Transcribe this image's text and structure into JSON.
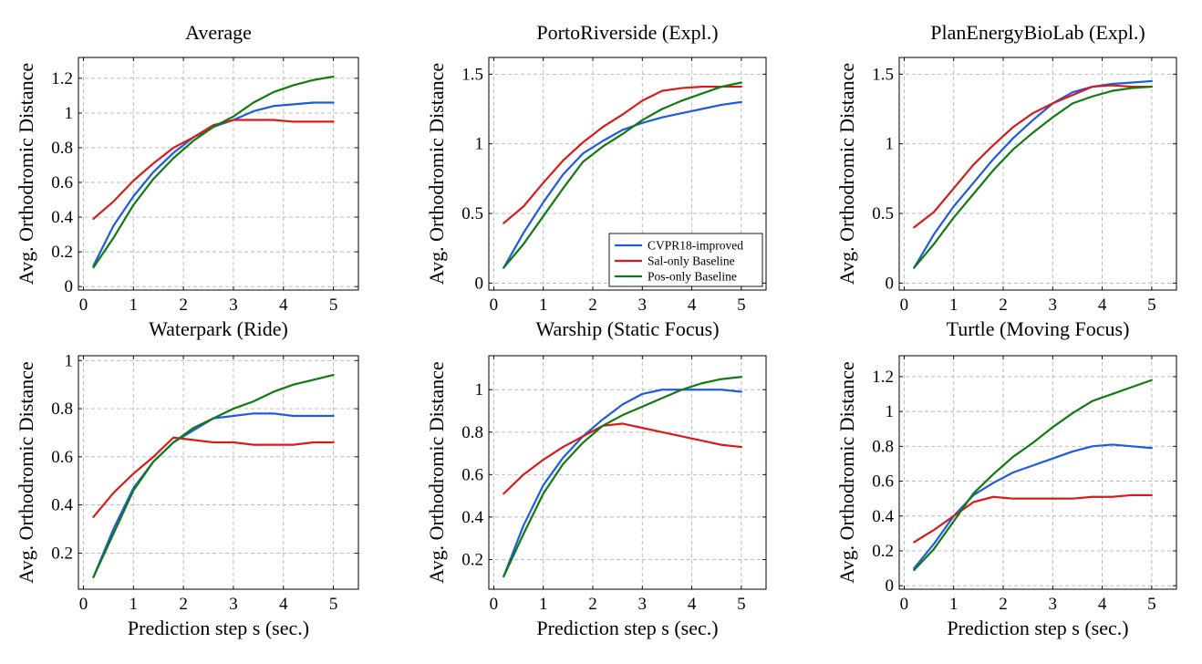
{
  "colors": {
    "CVPR18-improved": "#1f5be0",
    "Sal-only Baseline": "#d81b1b",
    "Pos-only Baseline": "#127a12"
  },
  "chart_data": [
    {
      "type": "line",
      "title": "Average",
      "xlabel": "Waterpark (Ride)",
      "ylabel": "Avg. Orthodromic Distance",
      "xlim": [
        -0.1,
        5.5
      ],
      "ylim": [
        -0.02,
        1.32
      ],
      "xticks": [
        0,
        1,
        2,
        3,
        4,
        5
      ],
      "xtick_labels": [
        "0",
        "1",
        "2",
        "3",
        "4",
        "5"
      ],
      "yticks": [
        0,
        0.2,
        0.4,
        0.6,
        0.8,
        1,
        1.2
      ],
      "ytick_labels": [
        "0",
        "0.2",
        "0.4",
        "0.6",
        "0.8",
        "1",
        "1.2"
      ],
      "grid": true,
      "legend": null,
      "x": [
        0.2,
        0.6,
        1.0,
        1.4,
        1.8,
        2.2,
        2.6,
        3.0,
        3.4,
        3.8,
        4.2,
        4.6,
        5.0
      ],
      "series": [
        {
          "name": "CVPR18-improved",
          "values": [
            0.12,
            0.35,
            0.52,
            0.66,
            0.77,
            0.86,
            0.92,
            0.96,
            1.01,
            1.04,
            1.05,
            1.06,
            1.06
          ]
        },
        {
          "name": "Sal-only Baseline",
          "values": [
            0.39,
            0.49,
            0.61,
            0.71,
            0.8,
            0.86,
            0.93,
            0.96,
            0.96,
            0.96,
            0.95,
            0.95,
            0.95
          ]
        },
        {
          "name": "Pos-only Baseline",
          "values": [
            0.11,
            0.28,
            0.47,
            0.62,
            0.74,
            0.84,
            0.92,
            0.98,
            1.06,
            1.12,
            1.16,
            1.19,
            1.21
          ]
        }
      ]
    },
    {
      "type": "line",
      "title": "PortoRiverside (Expl.)",
      "xlabel": "Warship (Static Focus)",
      "ylabel": "Avg. Orthodromic Distance",
      "xlim": [
        -0.1,
        5.5
      ],
      "ylim": [
        -0.05,
        1.62
      ],
      "xticks": [
        0,
        1,
        2,
        3,
        4,
        5
      ],
      "xtick_labels": [
        "0",
        "1",
        "2",
        "3",
        "4",
        "5"
      ],
      "yticks": [
        0,
        0.5,
        1,
        1.5
      ],
      "ytick_labels": [
        "0",
        "0.5",
        "1",
        "1.5"
      ],
      "grid": true,
      "legend": "bottom-right",
      "x": [
        0.2,
        0.6,
        1.0,
        1.4,
        1.8,
        2.2,
        2.6,
        3.0,
        3.4,
        3.8,
        4.2,
        4.6,
        5.0
      ],
      "series": [
        {
          "name": "CVPR18-improved",
          "values": [
            0.11,
            0.36,
            0.58,
            0.78,
            0.93,
            1.02,
            1.1,
            1.15,
            1.19,
            1.22,
            1.25,
            1.28,
            1.3
          ]
        },
        {
          "name": "Sal-only Baseline",
          "values": [
            0.43,
            0.55,
            0.72,
            0.88,
            1.01,
            1.12,
            1.21,
            1.31,
            1.38,
            1.4,
            1.41,
            1.41,
            1.41
          ]
        },
        {
          "name": "Pos-only Baseline",
          "values": [
            0.11,
            0.28,
            0.48,
            0.68,
            0.87,
            0.98,
            1.07,
            1.17,
            1.25,
            1.31,
            1.36,
            1.41,
            1.44
          ]
        }
      ]
    },
    {
      "type": "line",
      "title": "PlanEnergyBioLab (Expl.)",
      "xlabel": "Turtle (Moving Focus)",
      "ylabel": "Avg. Orthodromic Distance",
      "xlim": [
        -0.1,
        5.5
      ],
      "ylim": [
        -0.05,
        1.62
      ],
      "xticks": [
        0,
        1,
        2,
        3,
        4,
        5
      ],
      "xtick_labels": [
        "0",
        "1",
        "2",
        "3",
        "4",
        "5"
      ],
      "yticks": [
        0,
        0.5,
        1,
        1.5
      ],
      "ytick_labels": [
        "0",
        "0.5",
        "1",
        "1.5"
      ],
      "grid": true,
      "legend": null,
      "x": [
        0.2,
        0.6,
        1.0,
        1.4,
        1.8,
        2.2,
        2.6,
        3.0,
        3.4,
        3.8,
        4.2,
        4.6,
        5.0
      ],
      "series": [
        {
          "name": "CVPR18-improved",
          "values": [
            0.11,
            0.35,
            0.55,
            0.72,
            0.89,
            1.04,
            1.17,
            1.29,
            1.37,
            1.41,
            1.43,
            1.44,
            1.45
          ]
        },
        {
          "name": "Sal-only Baseline",
          "values": [
            0.4,
            0.51,
            0.68,
            0.85,
            0.99,
            1.12,
            1.22,
            1.29,
            1.35,
            1.41,
            1.42,
            1.41,
            1.41
          ]
        },
        {
          "name": "Pos-only Baseline",
          "values": [
            0.11,
            0.28,
            0.47,
            0.64,
            0.81,
            0.96,
            1.08,
            1.19,
            1.29,
            1.34,
            1.38,
            1.4,
            1.41
          ]
        }
      ]
    },
    {
      "type": "line",
      "title": "",
      "xlabel": "Prediction step s (sec.)",
      "ylabel": "Avg. Orthodromic Distance",
      "xlim": [
        -0.1,
        5.5
      ],
      "ylim": [
        0.05,
        1.02
      ],
      "xticks": [
        0,
        1,
        2,
        3,
        4,
        5
      ],
      "xtick_labels": [
        "0",
        "1",
        "2",
        "3",
        "4",
        "5"
      ],
      "yticks": [
        0.2,
        0.4,
        0.6,
        0.8,
        1
      ],
      "ytick_labels": [
        "0.2",
        "0.4",
        "0.6",
        "0.8",
        "1"
      ],
      "grid": true,
      "legend": null,
      "x": [
        0.2,
        0.6,
        1.0,
        1.4,
        1.8,
        2.2,
        2.6,
        3.0,
        3.4,
        3.8,
        4.2,
        4.6,
        5.0
      ],
      "series": [
        {
          "name": "CVPR18-improved",
          "values": [
            0.1,
            0.3,
            0.47,
            0.58,
            0.66,
            0.71,
            0.76,
            0.77,
            0.78,
            0.78,
            0.77,
            0.77,
            0.77
          ]
        },
        {
          "name": "Sal-only Baseline",
          "values": [
            0.35,
            0.45,
            0.53,
            0.6,
            0.68,
            0.67,
            0.66,
            0.66,
            0.65,
            0.65,
            0.65,
            0.66,
            0.66
          ]
        },
        {
          "name": "Pos-only Baseline",
          "values": [
            0.1,
            0.28,
            0.46,
            0.58,
            0.66,
            0.72,
            0.76,
            0.8,
            0.83,
            0.87,
            0.9,
            0.92,
            0.94
          ]
        }
      ]
    },
    {
      "type": "line",
      "title": "",
      "xlabel": "Prediction step s (sec.)",
      "ylabel": "Avg. Orthodromic Distance",
      "xlim": [
        -0.1,
        5.5
      ],
      "ylim": [
        0.06,
        1.16
      ],
      "xticks": [
        0,
        1,
        2,
        3,
        4,
        5
      ],
      "xtick_labels": [
        "0",
        "1",
        "2",
        "3",
        "4",
        "5"
      ],
      "yticks": [
        0.2,
        0.4,
        0.6,
        0.8,
        1
      ],
      "ytick_labels": [
        "0.2",
        "0.4",
        "0.6",
        "0.8",
        "1"
      ],
      "grid": true,
      "legend": null,
      "x": [
        0.2,
        0.6,
        1.0,
        1.4,
        1.8,
        2.2,
        2.6,
        3.0,
        3.4,
        3.8,
        4.2,
        4.6,
        5.0
      ],
      "series": [
        {
          "name": "CVPR18-improved",
          "values": [
            0.12,
            0.36,
            0.55,
            0.68,
            0.78,
            0.86,
            0.93,
            0.98,
            1.0,
            1.0,
            1.0,
            1.0,
            0.99
          ]
        },
        {
          "name": "Sal-only Baseline",
          "values": [
            0.51,
            0.6,
            0.67,
            0.73,
            0.78,
            0.83,
            0.84,
            0.82,
            0.8,
            0.78,
            0.76,
            0.74,
            0.73
          ]
        },
        {
          "name": "Pos-only Baseline",
          "values": [
            0.12,
            0.32,
            0.51,
            0.65,
            0.75,
            0.83,
            0.88,
            0.92,
            0.96,
            1.0,
            1.03,
            1.05,
            1.06
          ]
        }
      ]
    },
    {
      "type": "line",
      "title": "",
      "xlabel": "Prediction step s (sec.)",
      "ylabel": "Avg. Orthodromic Distance",
      "xlim": [
        -0.1,
        5.5
      ],
      "ylim": [
        -0.02,
        1.32
      ],
      "xticks": [
        0,
        1,
        2,
        3,
        4,
        5
      ],
      "xtick_labels": [
        "0",
        "1",
        "2",
        "3",
        "4",
        "5"
      ],
      "yticks": [
        0,
        0.2,
        0.4,
        0.6,
        0.8,
        1,
        1.2
      ],
      "ytick_labels": [
        "0",
        "0.2",
        "0.4",
        "0.6",
        "0.8",
        "1",
        "1.2"
      ],
      "grid": true,
      "legend": null,
      "x": [
        0.2,
        0.6,
        1.0,
        1.4,
        1.8,
        2.2,
        2.6,
        3.0,
        3.4,
        3.8,
        4.2,
        4.6,
        5.0
      ],
      "series": [
        {
          "name": "CVPR18-improved",
          "values": [
            0.1,
            0.24,
            0.4,
            0.52,
            0.59,
            0.65,
            0.69,
            0.73,
            0.77,
            0.8,
            0.81,
            0.8,
            0.79
          ]
        },
        {
          "name": "Sal-only Baseline",
          "values": [
            0.25,
            0.32,
            0.4,
            0.48,
            0.51,
            0.5,
            0.5,
            0.5,
            0.5,
            0.51,
            0.51,
            0.52,
            0.52
          ]
        },
        {
          "name": "Pos-only Baseline",
          "values": [
            0.09,
            0.21,
            0.37,
            0.53,
            0.64,
            0.74,
            0.82,
            0.91,
            0.99,
            1.06,
            1.1,
            1.14,
            1.18
          ]
        }
      ]
    }
  ]
}
